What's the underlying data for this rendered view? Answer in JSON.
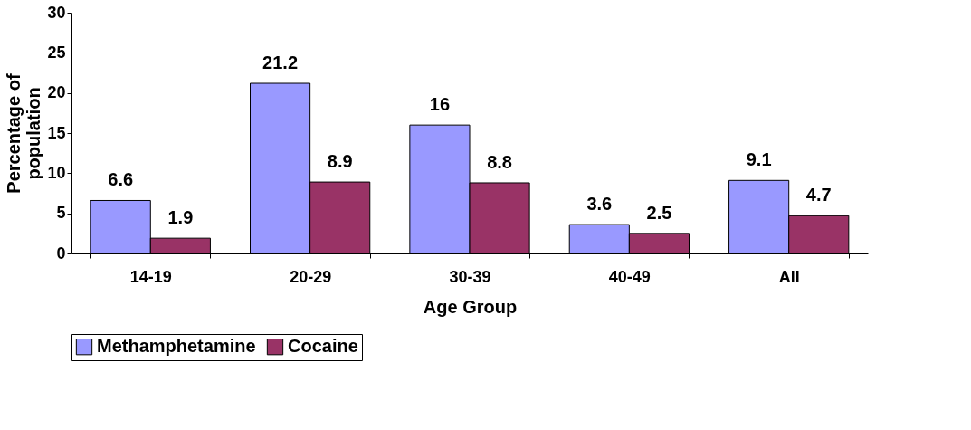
{
  "chart_data": {
    "type": "bar",
    "xlabel": "Age Group",
    "ylabel": "Percentage of\npopulation",
    "categories": [
      "14-19",
      "20-29",
      "30-39",
      "40-49",
      "All"
    ],
    "series": [
      {
        "name": "Methamphetamine",
        "color": "#9999ff",
        "values": [
          6.6,
          21.2,
          16,
          3.6,
          9.1
        ]
      },
      {
        "name": "Cocaine",
        "color": "#993366",
        "values": [
          1.9,
          8.9,
          8.8,
          2.5,
          4.7
        ]
      }
    ],
    "ylim": [
      0,
      30
    ],
    "yticks": [
      0,
      5,
      10,
      15,
      20,
      25,
      30
    ],
    "grid": false,
    "legend": "bottom",
    "data_labels": true
  }
}
